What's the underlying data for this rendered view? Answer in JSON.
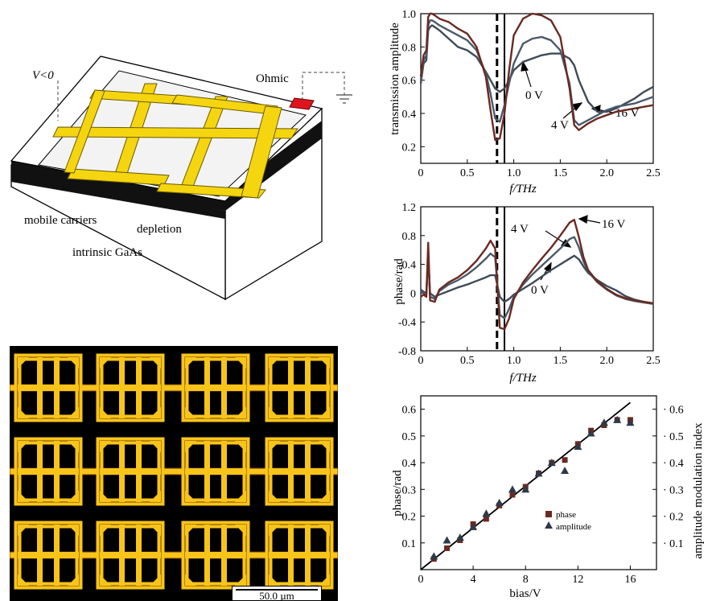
{
  "schematic": {
    "v_label": "V<0",
    "ohmic_label": "Ohmic",
    "mobile_carriers_label": "mobile carriers",
    "depletion_label": "depletion",
    "intrinsic_label": "intrinsic GaAs",
    "colors": {
      "metal": "#f5d50f",
      "contact": "#e0151b",
      "layer": "#111111"
    }
  },
  "micrograph": {
    "scalebar_label": "50.0 µm",
    "unit_rows": 3,
    "unit_cols": 4,
    "colors": {
      "metal": "#f7c51a",
      "background": "#000000",
      "edge": "#7a3b06"
    }
  },
  "chart_data": [
    {
      "type": "line",
      "xlabel": "f/THz",
      "ylabel": "transmission amplitude",
      "xlim": [
        0,
        2.5
      ],
      "ylim": [
        0.1,
        1.0
      ],
      "xticks": [
        "0",
        "0.5",
        "1.0",
        "1.5",
        "2.0",
        "2.5"
      ],
      "yticks": [
        "0.2",
        "0.4",
        "0.6",
        "0.8",
        "1.0"
      ],
      "vlines": [
        {
          "x": 0.82,
          "style": "dashed"
        },
        {
          "x": 0.9,
          "style": "solid"
        }
      ],
      "annotations": [
        "0 V",
        "4 V",
        "16 V"
      ],
      "series": [
        {
          "name": "0 V",
          "color": "#3e4a58",
          "x": [
            0.0,
            0.03,
            0.06,
            0.08,
            0.1,
            0.12,
            0.15,
            0.2,
            0.3,
            0.4,
            0.5,
            0.6,
            0.7,
            0.75,
            0.8,
            0.85,
            0.9,
            0.95,
            1.0,
            1.1,
            1.2,
            1.3,
            1.4,
            1.5,
            1.6,
            1.65,
            1.7,
            1.8,
            1.9,
            2.0,
            2.1,
            2.2,
            2.3,
            2.4,
            2.5
          ],
          "y": [
            0.58,
            0.7,
            0.72,
            0.9,
            0.92,
            0.93,
            0.92,
            0.9,
            0.85,
            0.8,
            0.78,
            0.74,
            0.65,
            0.6,
            0.55,
            0.53,
            0.55,
            0.6,
            0.66,
            0.71,
            0.73,
            0.75,
            0.76,
            0.76,
            0.73,
            0.69,
            0.6,
            0.47,
            0.41,
            0.41,
            0.43,
            0.46,
            0.49,
            0.53,
            0.56
          ]
        },
        {
          "name": "4 V",
          "color": "#4a5a6a",
          "x": [
            0.0,
            0.03,
            0.06,
            0.08,
            0.1,
            0.12,
            0.15,
            0.2,
            0.3,
            0.4,
            0.5,
            0.6,
            0.7,
            0.75,
            0.8,
            0.85,
            0.9,
            0.95,
            1.0,
            1.1,
            1.2,
            1.3,
            1.4,
            1.5,
            1.6,
            1.65,
            1.7,
            1.8,
            1.9,
            2.0,
            2.1,
            2.2,
            2.3,
            2.4,
            2.5
          ],
          "y": [
            0.6,
            0.72,
            0.75,
            0.93,
            0.96,
            0.96,
            0.95,
            0.93,
            0.9,
            0.87,
            0.84,
            0.78,
            0.64,
            0.52,
            0.37,
            0.35,
            0.45,
            0.58,
            0.7,
            0.82,
            0.85,
            0.86,
            0.84,
            0.78,
            0.58,
            0.36,
            0.33,
            0.36,
            0.39,
            0.42,
            0.44,
            0.45,
            0.46,
            0.48,
            0.5
          ]
        },
        {
          "name": "16 V",
          "color": "#6b2a22",
          "x": [
            0.0,
            0.03,
            0.06,
            0.08,
            0.1,
            0.12,
            0.15,
            0.2,
            0.3,
            0.4,
            0.5,
            0.6,
            0.7,
            0.75,
            0.8,
            0.85,
            0.9,
            0.95,
            1.0,
            1.1,
            1.2,
            1.3,
            1.4,
            1.5,
            1.6,
            1.65,
            1.7,
            1.8,
            1.9,
            2.0,
            2.1,
            2.2,
            2.3,
            2.4,
            2.5
          ],
          "y": [
            0.62,
            0.75,
            0.78,
            0.98,
            1.0,
            1.0,
            0.99,
            0.97,
            0.95,
            0.91,
            0.88,
            0.8,
            0.62,
            0.42,
            0.24,
            0.25,
            0.4,
            0.66,
            0.87,
            0.97,
            1.0,
            0.99,
            0.96,
            0.86,
            0.55,
            0.33,
            0.3,
            0.34,
            0.37,
            0.39,
            0.41,
            0.42,
            0.43,
            0.44,
            0.45
          ]
        }
      ]
    },
    {
      "type": "line",
      "xlabel": "f/THz",
      "ylabel": "phase/rad",
      "xlim": [
        0,
        2.5
      ],
      "ylim": [
        -0.8,
        1.2
      ],
      "xticks": [
        "0",
        "0.5",
        "1.0",
        "1.5",
        "2.0",
        "2.5"
      ],
      "yticks": [
        "-0.8",
        "-0.4",
        "0",
        "0.4",
        "0.8",
        "1.2"
      ],
      "vlines": [
        {
          "x": 0.82,
          "style": "dashed"
        },
        {
          "x": 0.9,
          "style": "solid"
        }
      ],
      "annotations": [
        "4 V",
        "16 V",
        "0 V"
      ],
      "series": [
        {
          "name": "0 V",
          "color": "#3e4a58",
          "x": [
            0.0,
            0.03,
            0.06,
            0.08,
            0.1,
            0.15,
            0.2,
            0.3,
            0.4,
            0.5,
            0.6,
            0.7,
            0.75,
            0.8,
            0.85,
            0.9,
            0.95,
            1.0,
            1.1,
            1.2,
            1.3,
            1.4,
            1.5,
            1.6,
            1.65,
            1.7,
            1.75,
            1.8,
            1.9,
            2.0,
            2.1,
            2.2,
            2.3,
            2.4,
            2.5
          ],
          "y": [
            0.05,
            0.02,
            0.0,
            0.5,
            0.0,
            -0.05,
            -0.02,
            0.03,
            0.08,
            0.12,
            0.17,
            0.22,
            0.25,
            0.25,
            -0.05,
            -0.12,
            -0.08,
            -0.02,
            0.06,
            0.14,
            0.23,
            0.32,
            0.4,
            0.48,
            0.52,
            0.47,
            0.37,
            0.28,
            0.18,
            0.1,
            0.04,
            -0.04,
            -0.09,
            -0.12,
            -0.14
          ]
        },
        {
          "name": "4 V",
          "color": "#4a5a6a",
          "x": [
            0.0,
            0.03,
            0.06,
            0.08,
            0.1,
            0.15,
            0.2,
            0.3,
            0.4,
            0.5,
            0.6,
            0.7,
            0.75,
            0.8,
            0.85,
            0.9,
            0.95,
            1.0,
            1.1,
            1.2,
            1.3,
            1.4,
            1.5,
            1.6,
            1.65,
            1.7,
            1.75,
            1.8,
            1.9,
            2.0,
            2.1,
            2.2,
            2.3,
            2.4,
            2.5
          ],
          "y": [
            0.02,
            0.0,
            -0.02,
            0.6,
            -0.05,
            -0.08,
            0.03,
            0.12,
            0.18,
            0.26,
            0.36,
            0.48,
            0.55,
            0.5,
            -0.3,
            -0.35,
            -0.22,
            -0.05,
            0.12,
            0.26,
            0.38,
            0.5,
            0.62,
            0.75,
            0.78,
            0.64,
            0.44,
            0.3,
            0.15,
            0.05,
            -0.03,
            -0.08,
            -0.11,
            -0.13,
            -0.15
          ]
        },
        {
          "name": "16 V",
          "color": "#6b2a22",
          "x": [
            0.0,
            0.03,
            0.06,
            0.08,
            0.1,
            0.15,
            0.2,
            0.3,
            0.4,
            0.5,
            0.6,
            0.7,
            0.75,
            0.8,
            0.85,
            0.9,
            0.95,
            1.0,
            1.1,
            1.2,
            1.3,
            1.4,
            1.5,
            1.6,
            1.65,
            1.7,
            1.75,
            1.8,
            1.9,
            2.0,
            2.1,
            2.2,
            2.3,
            2.4,
            2.5
          ],
          "y": [
            -0.05,
            -0.02,
            -0.05,
            0.7,
            -0.1,
            -0.12,
            0.05,
            0.15,
            0.22,
            0.32,
            0.45,
            0.62,
            0.73,
            0.62,
            -0.48,
            -0.5,
            -0.35,
            -0.08,
            0.15,
            0.32,
            0.48,
            0.63,
            0.8,
            0.98,
            1.02,
            0.78,
            0.5,
            0.32,
            0.16,
            0.06,
            -0.02,
            -0.07,
            -0.1,
            -0.12,
            -0.14
          ]
        }
      ]
    },
    {
      "type": "scatter",
      "xlabel": "bias/V",
      "ylabel": "phase/rad",
      "y2label": "amplitude modulation index",
      "xlim": [
        0,
        18
      ],
      "ylim": [
        0,
        0.65
      ],
      "xticks": [
        "0",
        "4",
        "8",
        "12",
        "16"
      ],
      "yticks": [
        "0.1",
        "0.2",
        "0.3",
        "0.4",
        "0.5",
        "0.6"
      ],
      "y2ticks": [
        "0.1",
        "0.2",
        "0.3",
        "0.4",
        "0.5",
        "0.6"
      ],
      "fit_line": {
        "x": [
          0,
          16
        ],
        "y": [
          0.0,
          0.625
        ]
      },
      "legend": {
        "position": "lower-right"
      },
      "series": [
        {
          "name": "phase",
          "marker": "square",
          "color": "#6b2a22",
          "x": [
            1,
            2,
            3,
            4,
            5,
            6,
            7,
            8,
            9,
            10,
            11,
            12,
            13,
            14,
            15,
            16
          ],
          "y": [
            0.04,
            0.08,
            0.11,
            0.17,
            0.19,
            0.24,
            0.28,
            0.31,
            0.36,
            0.4,
            0.41,
            0.47,
            0.52,
            0.54,
            0.56,
            0.56
          ]
        },
        {
          "name": "amplitude",
          "marker": "triangle",
          "color": "#2c3a4a",
          "x": [
            1,
            2,
            3,
            4,
            5,
            6,
            7,
            8,
            9,
            10,
            11,
            12,
            13,
            14,
            15,
            16
          ],
          "y": [
            0.05,
            0.11,
            0.12,
            0.16,
            0.21,
            0.25,
            0.3,
            0.3,
            0.36,
            0.4,
            0.37,
            0.46,
            0.51,
            0.55,
            0.56,
            0.55
          ]
        }
      ]
    }
  ]
}
